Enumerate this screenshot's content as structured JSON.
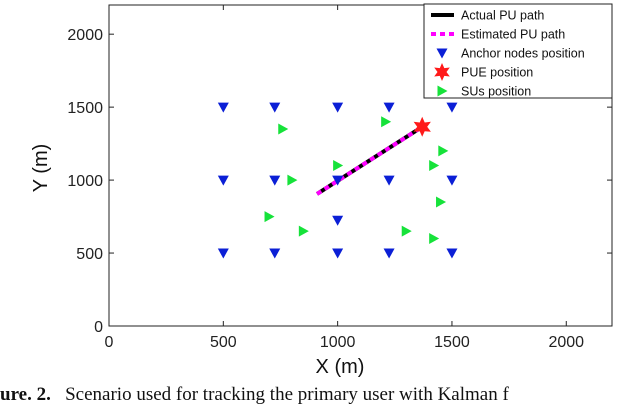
{
  "chart_data": {
    "type": "scatter",
    "xlabel": "X (m)",
    "ylabel": "Y (m)",
    "xlim": [
      0,
      2200
    ],
    "ylim": [
      0,
      2200
    ],
    "xticks": [
      0,
      500,
      1000,
      1500,
      2000
    ],
    "yticks": [
      0,
      500,
      1000,
      1500,
      2000
    ],
    "grid": false,
    "legend_position": "top-right",
    "series": [
      {
        "name": "Actual PU path",
        "kind": "line",
        "color": "#000000",
        "points": [
          [
            910,
            905
          ],
          [
            1370,
            1365
          ]
        ]
      },
      {
        "name": "Estimated PU path",
        "kind": "dashed-line",
        "color": "#ff00ff",
        "points": [
          [
            910,
            905
          ],
          [
            1370,
            1365
          ]
        ]
      },
      {
        "name": "Anchor nodes position",
        "kind": "marker",
        "marker": "triangle-down",
        "color": "#0b1fd6",
        "points": [
          [
            500,
            1500
          ],
          [
            725,
            1500
          ],
          [
            1000,
            1500
          ],
          [
            1225,
            1500
          ],
          [
            1500,
            1500
          ],
          [
            500,
            1000
          ],
          [
            725,
            1000
          ],
          [
            1000,
            1000
          ],
          [
            1225,
            1000
          ],
          [
            1500,
            1000
          ],
          [
            1000,
            725
          ],
          [
            500,
            500
          ],
          [
            725,
            500
          ],
          [
            1000,
            500
          ],
          [
            1225,
            500
          ],
          [
            1500,
            500
          ]
        ]
      },
      {
        "name": "PUE position",
        "kind": "marker",
        "marker": "star",
        "color": "#ff1a1a",
        "points": [
          [
            1370,
            1365
          ]
        ]
      },
      {
        "name": "SUs position",
        "kind": "marker",
        "marker": "triangle-right",
        "color": "#16e23a",
        "points": [
          [
            760,
            1350
          ],
          [
            1210,
            1400
          ],
          [
            1460,
            1200
          ],
          [
            800,
            1000
          ],
          [
            1000,
            1100
          ],
          [
            1420,
            1100
          ],
          [
            1450,
            850
          ],
          [
            700,
            750
          ],
          [
            850,
            650
          ],
          [
            1300,
            650
          ],
          [
            1420,
            600
          ]
        ]
      }
    ]
  },
  "caption": {
    "label": "ure. 2.",
    "text": "Scenario used for tracking the primary user with Kalman f"
  }
}
